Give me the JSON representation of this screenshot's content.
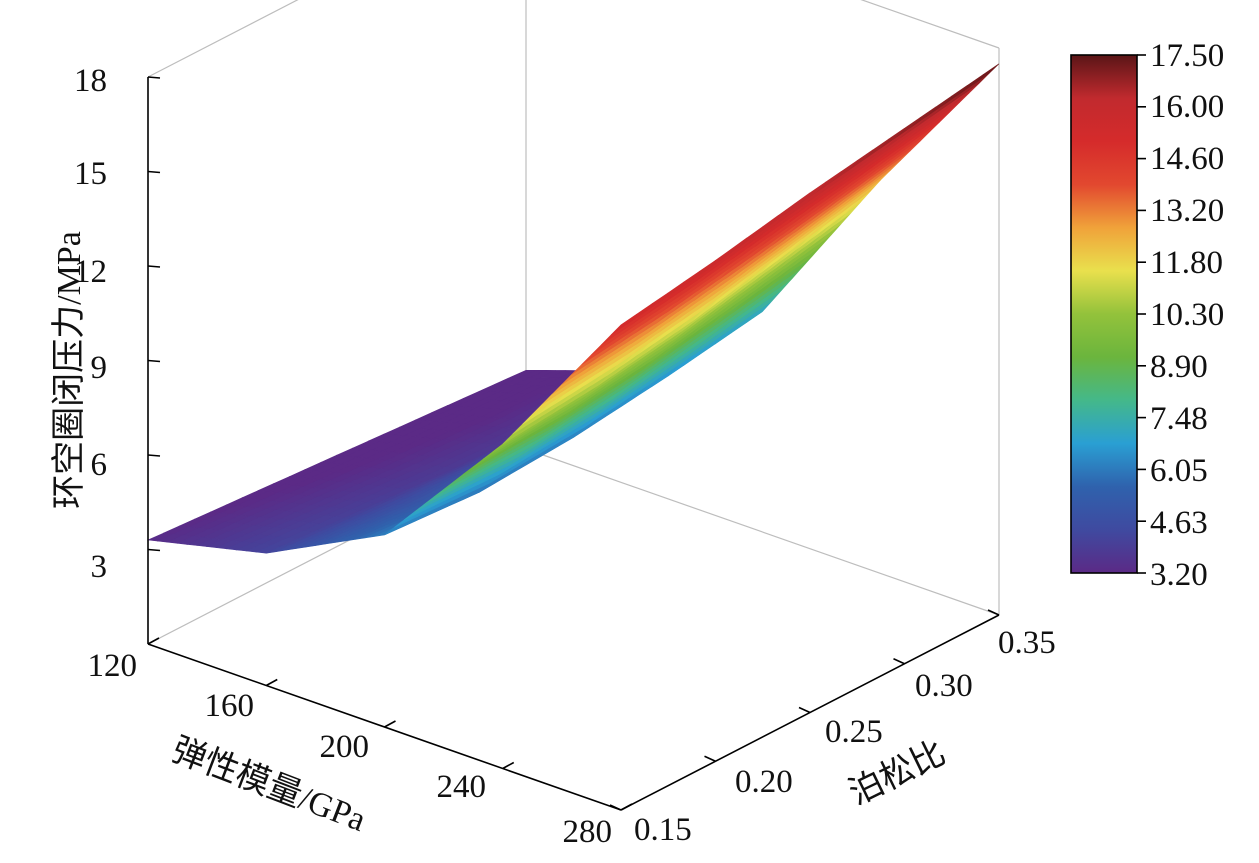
{
  "chart_data": {
    "type": "surface3d",
    "xlabel": "弹性模量/GPa",
    "ylabel": "泊松比",
    "zlabel": "环空圈闭压力/MPa",
    "x_ticks": [
      "120",
      "160",
      "200",
      "240",
      "280"
    ],
    "y_ticks": [
      "0.15",
      "0.20",
      "0.25",
      "0.30",
      "0.35"
    ],
    "z_ticks": [
      "3",
      "6",
      "9",
      "12",
      "15",
      "18"
    ],
    "xlim": [
      120,
      280
    ],
    "ylim": [
      0.15,
      0.35
    ],
    "zlim": [
      0,
      18
    ],
    "colorbar": {
      "labels": [
        "17.50",
        "16.00",
        "14.60",
        "13.20",
        "11.80",
        "10.30",
        "8.90",
        "7.48",
        "6.05",
        "4.63",
        "3.20"
      ],
      "range": [
        3.2,
        17.5
      ],
      "colors": [
        "#5b2a86",
        "#3f4aa0",
        "#2f62ad",
        "#2a9fd3",
        "#44b88a",
        "#6bb53d",
        "#93c23b",
        "#e9e04d",
        "#f0a23a",
        "#e2482f",
        "#d52b2b",
        "#c12a2e",
        "#5a1517"
      ]
    },
    "x": [
      120,
      160,
      200,
      240,
      280
    ],
    "y": [
      0.15,
      0.2,
      0.25,
      0.3,
      0.35
    ],
    "z": [
      [
        3.3,
        4.2,
        6.1,
        10.3,
        15.4
      ],
      [
        3.1,
        4.0,
        5.9,
        10.6,
        15.9
      ],
      [
        2.9,
        3.8,
        6.1,
        11.1,
        16.5
      ],
      [
        2.7,
        3.7,
        6.5,
        11.8,
        17.0
      ],
      [
        2.5,
        3.8,
        7.0,
        12.5,
        17.5
      ]
    ]
  }
}
